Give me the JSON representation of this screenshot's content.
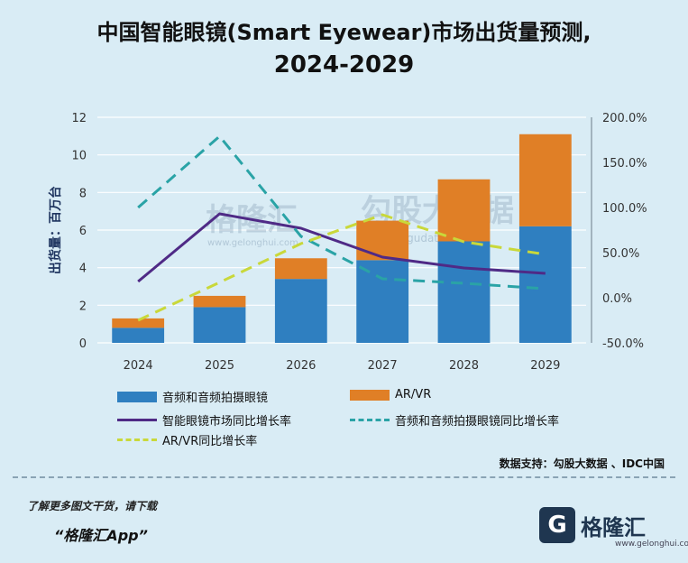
{
  "title": {
    "line1": "中国智能眼镜(Smart Eyewear)市场出货量预测,",
    "line2": "2024-2029"
  },
  "chart_data": {
    "type": "bar",
    "stacked": true,
    "categories": [
      "2024",
      "2025",
      "2026",
      "2027",
      "2028",
      "2029"
    ],
    "ylabel": "出货量：百万台",
    "ylim": [
      0,
      12
    ],
    "yticks": [
      "0",
      "2",
      "4",
      "6",
      "8",
      "10",
      "12"
    ],
    "y2lim": [
      -50,
      200
    ],
    "y2ticks": [
      "-50.0%",
      "0.0%",
      "50.0%",
      "100.0%",
      "150.0%",
      "200.0%"
    ],
    "series": [
      {
        "name": "音频和音频拍摄眼镜",
        "kind": "bar",
        "color": "#2f7fc0",
        "values": [
          0.8,
          1.9,
          3.4,
          4.4,
          5.4,
          6.2
        ]
      },
      {
        "name": "AR/VR",
        "kind": "bar",
        "color": "#e07f26",
        "values": [
          0.5,
          0.6,
          1.1,
          2.1,
          3.3,
          4.9
        ]
      },
      {
        "name": "智能眼镜市场同比增长率",
        "kind": "line",
        "axis": "right",
        "color": "#4f2a86",
        "values": [
          18,
          93,
          77,
          45,
          33,
          27
        ]
      },
      {
        "name": "音频和音频拍摄眼镜同比增长率",
        "kind": "line",
        "axis": "right",
        "color": "#2aa3a6",
        "dash": "long",
        "values": [
          100,
          179,
          68,
          21,
          16,
          10
        ]
      },
      {
        "name": "AR/VR同比增长率",
        "kind": "line",
        "axis": "right",
        "color": "#c9d83a",
        "dash": "long",
        "values": [
          -25,
          17,
          60,
          92,
          62,
          48
        ]
      }
    ]
  },
  "source": "数据支持：勾股大数据 、IDC中国",
  "footer": {
    "line1": "了解更多图文干货，请下载",
    "line2": "“格隆汇App”"
  },
  "brand": {
    "mark": "G",
    "name": "格隆汇",
    "url": "www.gelonghui.com"
  },
  "watermark": {
    "left": "格隆汇",
    "left_url": "www.gelonghui.com",
    "right": "勾股大数据",
    "right_url": "www.gogudata.com"
  }
}
